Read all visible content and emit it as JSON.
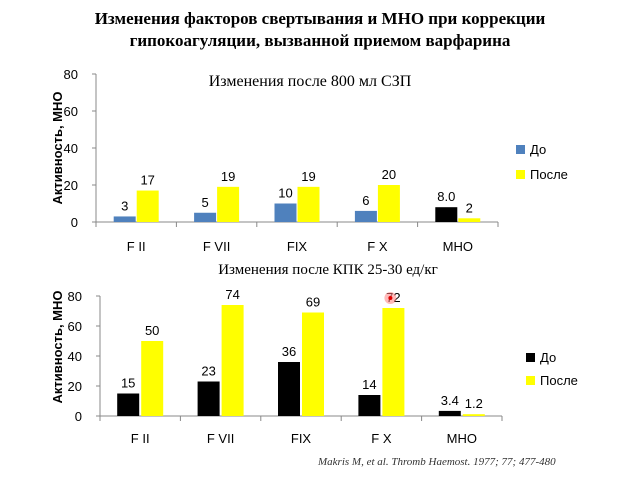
{
  "title_line1": "Изменения факторов свертывания и МНО при коррекции",
  "title_line2": "гипокоагуляции, вызванной приемом варфарина",
  "citation": "Makris M, et al. Thromb Haemost.  1977; 77; 477-480",
  "colors": {
    "before_top": "#4f81bd",
    "before_bottom": "#000000",
    "after": "#ffff00",
    "highlight": "#ff8080"
  },
  "chart_data": [
    {
      "type": "bar",
      "title": "Изменения после 800 мл СЗП",
      "ylabel": "Активность, МНО",
      "xlabel": "",
      "ylim": [
        0,
        80
      ],
      "yticks": [
        0,
        20,
        40,
        60,
        80
      ],
      "grid": false,
      "legend_position": "right",
      "categories": [
        "F II",
        "F VII",
        "FIX",
        "F X",
        "МНО"
      ],
      "series": [
        {
          "name": "До",
          "values": [
            3,
            5,
            10,
            6,
            8.0
          ],
          "labels": [
            "3",
            "5",
            "10",
            "6",
            "8.0"
          ],
          "color": "#4f81bd",
          "last_color": "#000000"
        },
        {
          "name": "После",
          "values": [
            17,
            19,
            19,
            20,
            2
          ],
          "labels": [
            "17",
            "19",
            "19",
            "20",
            "2"
          ],
          "color": "#ffff00"
        }
      ]
    },
    {
      "type": "bar",
      "title": "Изменения после КПК 25-30 ед/кг",
      "ylabel": "Активность, МНО",
      "xlabel": "",
      "ylim": [
        0,
        80
      ],
      "yticks": [
        0,
        20,
        40,
        60,
        80
      ],
      "grid": false,
      "legend_position": "right",
      "categories": [
        "F II",
        "F VII",
        "FIX",
        "F X",
        "МНО"
      ],
      "series": [
        {
          "name": "До",
          "values": [
            15,
            23,
            36,
            14,
            3.4
          ],
          "labels": [
            "15",
            "23",
            "36",
            "14",
            "3.4"
          ],
          "color": "#000000"
        },
        {
          "name": "После",
          "values": [
            50,
            74,
            69,
            72,
            1.2
          ],
          "labels": [
            "50",
            "74",
            "69",
            "72",
            "1.2"
          ],
          "color": "#ffff00"
        }
      ]
    }
  ]
}
